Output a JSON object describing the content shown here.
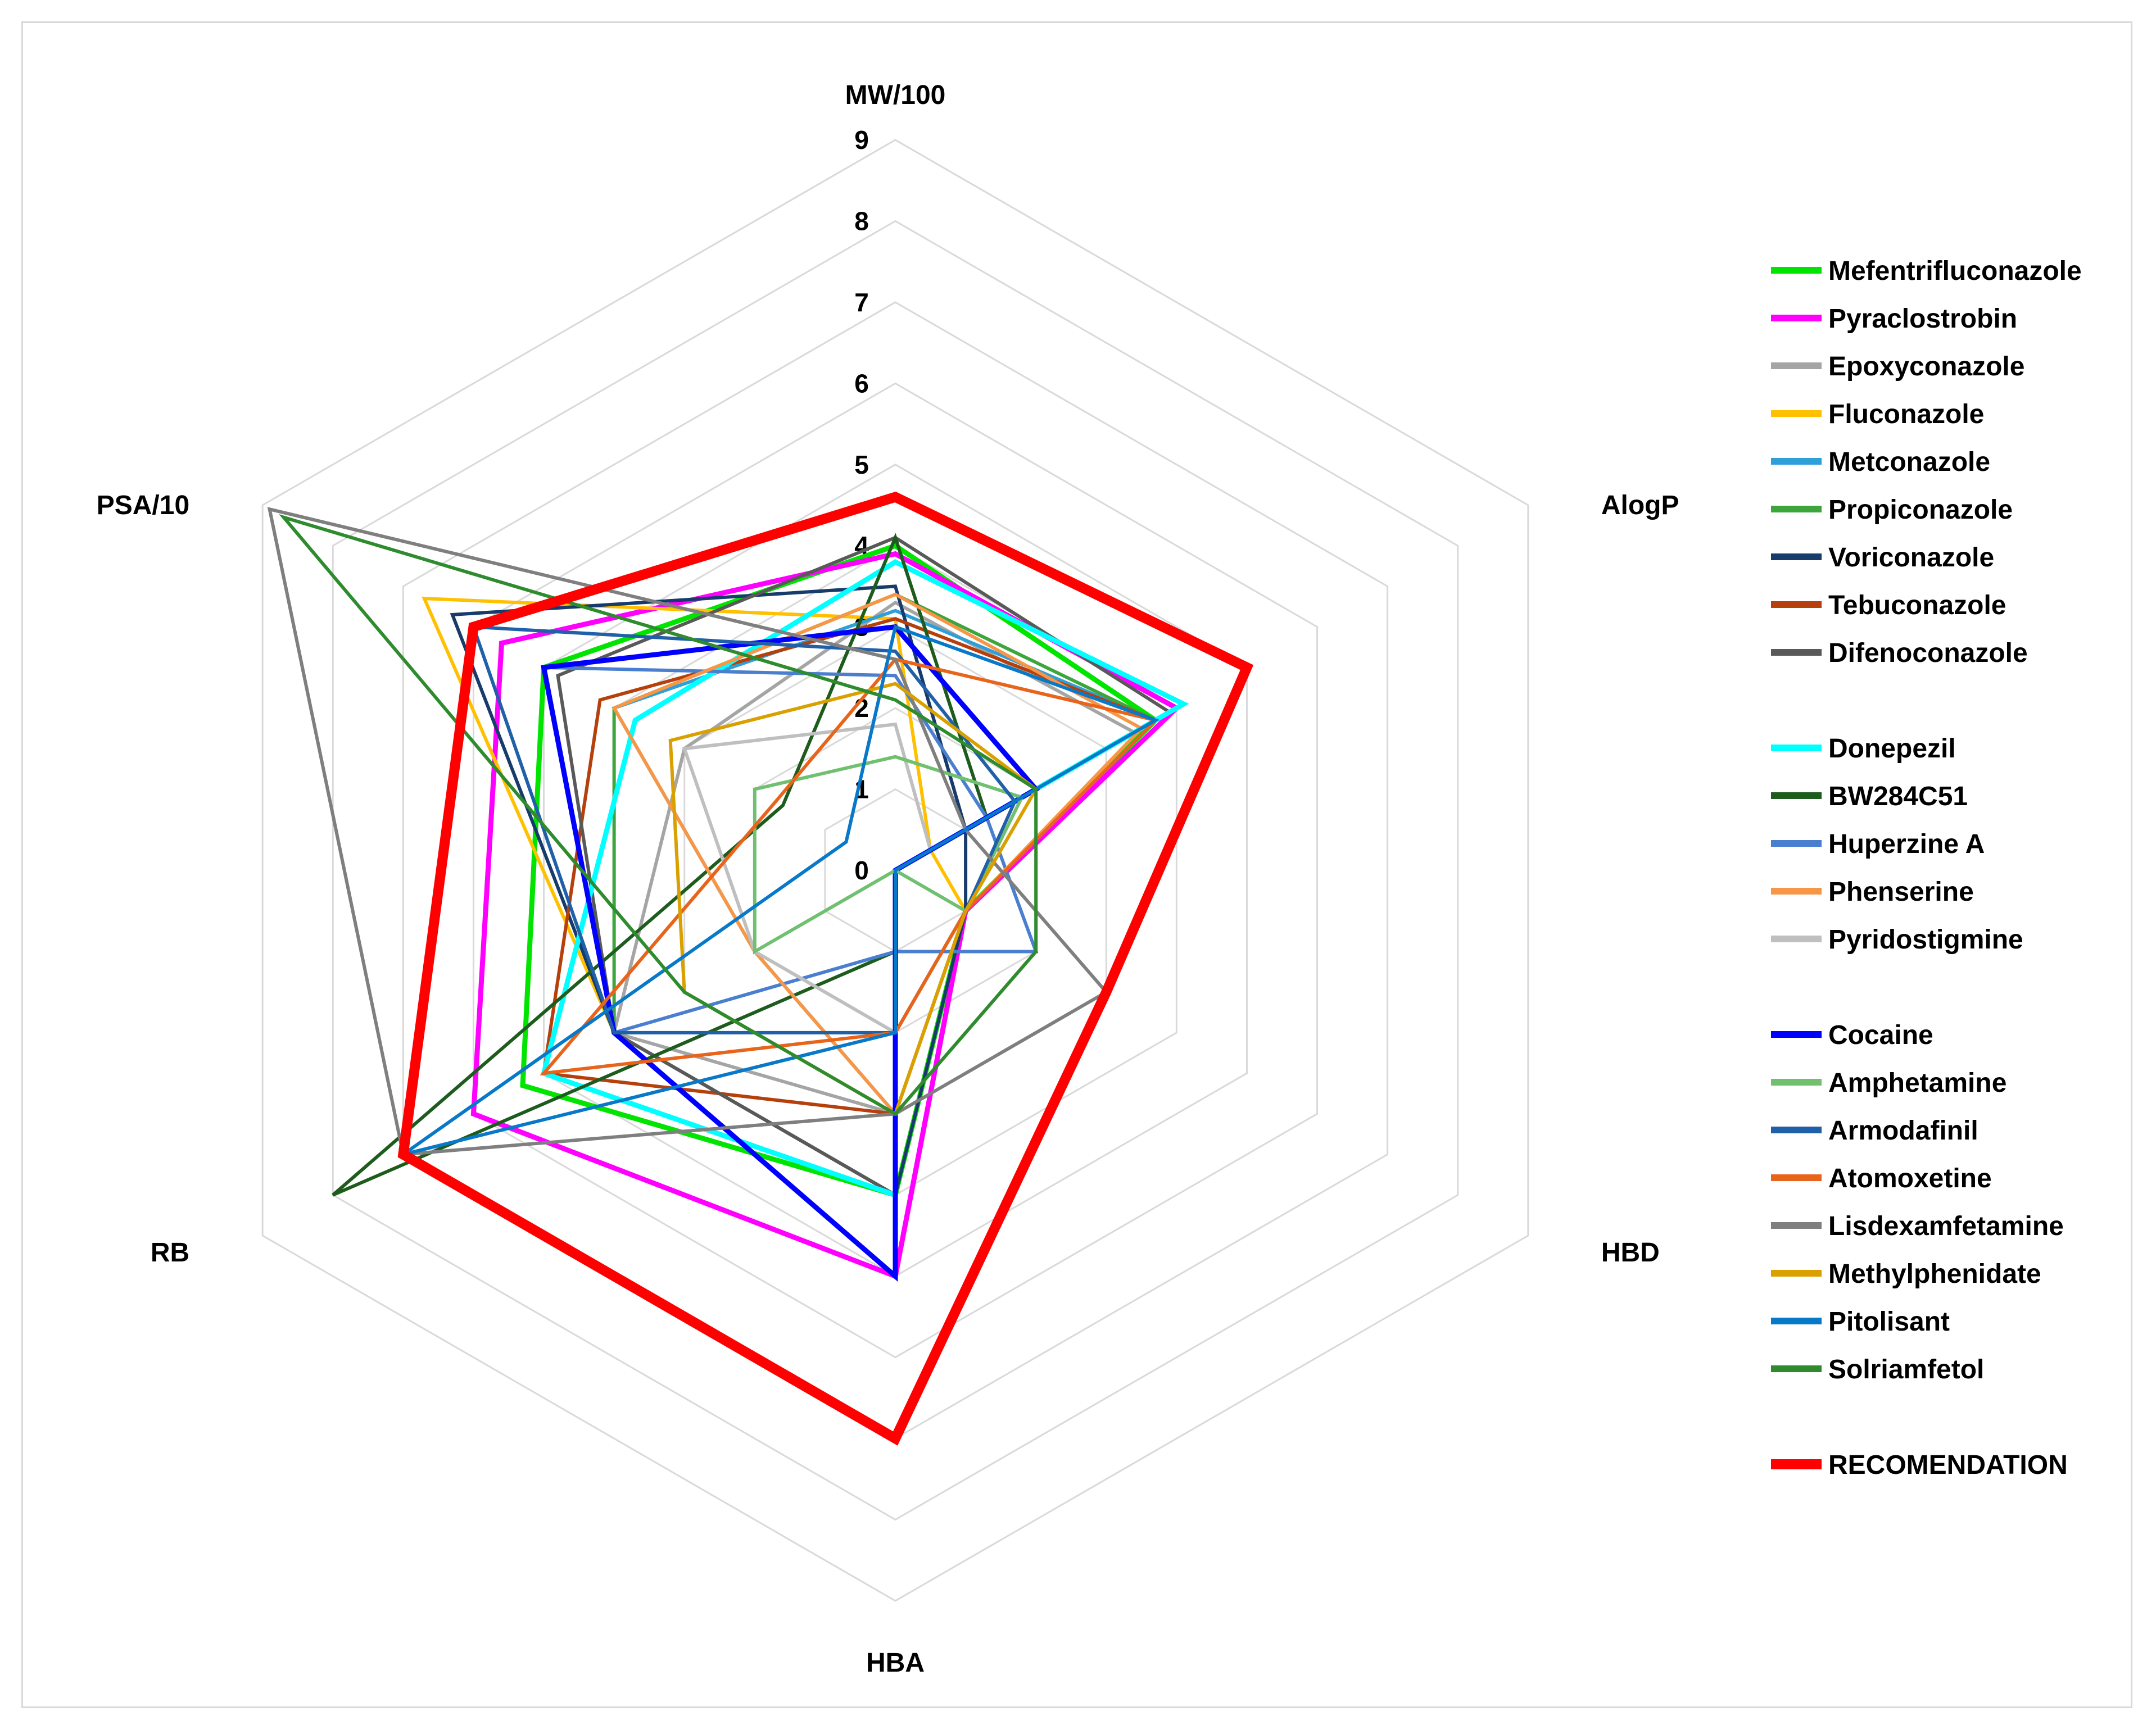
{
  "chart_data": {
    "type": "radar",
    "title": "",
    "axes": [
      "MW/100",
      "AlogP",
      "HBD",
      "HBA",
      "RB",
      "PSA/10"
    ],
    "ticks": [
      0,
      1,
      2,
      3,
      4,
      5,
      6,
      7,
      8,
      9
    ],
    "range": [
      0,
      9
    ],
    "grid": true,
    "legend_position": "right",
    "series": [
      {
        "name": "Mefentrifluconazole",
        "color": "#00e400",
        "width": 9,
        "values": [
          4.0,
          3.7,
          1.0,
          4.0,
          5.3,
          5.0
        ]
      },
      {
        "name": "Pyraclostrobin",
        "color": "#ff00ff",
        "width": 9,
        "values": [
          3.9,
          4.0,
          1.0,
          5.0,
          6.0,
          5.6
        ]
      },
      {
        "name": "Epoxyconazole",
        "color": "#a5a5a5",
        "width": 6,
        "values": [
          3.3,
          3.4,
          0.0,
          3.0,
          4.0,
          3.0
        ]
      },
      {
        "name": "Fluconazole",
        "color": "#ffc000",
        "width": 6,
        "values": [
          3.1,
          0.5,
          1.0,
          4.0,
          4.0,
          6.7
        ]
      },
      {
        "name": "Metconazole",
        "color": "#2e9fd8",
        "width": 6,
        "values": [
          3.2,
          3.7,
          1.0,
          3.0,
          2.0,
          4.0
        ]
      },
      {
        "name": "Propiconazole",
        "color": "#3ca63c",
        "width": 6,
        "values": [
          3.4,
          3.7,
          0.0,
          4.0,
          4.0,
          4.0
        ]
      },
      {
        "name": "Voriconazole",
        "color": "#173b6b",
        "width": 6,
        "values": [
          3.5,
          1.0,
          1.0,
          4.0,
          4.0,
          6.3
        ]
      },
      {
        "name": "Tebuconazole",
        "color": "#b5400c",
        "width": 6,
        "values": [
          3.1,
          3.7,
          1.0,
          3.0,
          5.0,
          4.2
        ]
      },
      {
        "name": "Difenoconazole",
        "color": "#595959",
        "width": 6,
        "values": [
          4.1,
          3.9,
          0.0,
          4.0,
          4.0,
          4.8
        ]
      },
      {
        "name": "Donepezil",
        "color": "#00ffff",
        "width": 9,
        "values": [
          3.8,
          4.1,
          0.0,
          4.0,
          5.0,
          3.7
        ]
      },
      {
        "name": "BW284C51",
        "color": "#1e5c1e",
        "width": 6,
        "values": [
          4.1,
          1.3,
          0.0,
          1.0,
          8.0,
          1.6
        ]
      },
      {
        "name": "Huperzine A",
        "color": "#4a7fd0",
        "width": 6,
        "values": [
          2.4,
          1.3,
          2.0,
          1.0,
          4.0,
          5.0
        ]
      },
      {
        "name": "Phenserine",
        "color": "#f79646",
        "width": 6,
        "values": [
          3.4,
          3.5,
          1.0,
          3.0,
          2.0,
          4.0
        ]
      },
      {
        "name": "Pyridostigmine",
        "color": "#bfbfbf",
        "width": 6,
        "values": [
          1.8,
          0.5,
          0.0,
          2.0,
          2.0,
          3.0
        ]
      },
      {
        "name": "Cocaine",
        "color": "#0000ff",
        "width": 9,
        "values": [
          3.0,
          2.0,
          0.0,
          5.0,
          4.0,
          5.0
        ]
      },
      {
        "name": "Amphetamine",
        "color": "#70c070",
        "width": 6,
        "values": [
          1.4,
          1.8,
          1.0,
          0.0,
          2.0,
          2.0
        ]
      },
      {
        "name": "Armodafinil",
        "color": "#2060a8",
        "width": 6,
        "values": [
          2.7,
          1.7,
          1.0,
          2.0,
          4.0,
          6.0
        ]
      },
      {
        "name": "Atomoxetine",
        "color": "#e8641a",
        "width": 6,
        "values": [
          2.6,
          3.7,
          1.0,
          2.0,
          5.0,
          1.7
        ]
      },
      {
        "name": "Lisdexamfetamine",
        "color": "#7f7f7f",
        "width": 6,
        "values": [
          2.6,
          1.0,
          3.0,
          3.0,
          7.0,
          8.9
        ]
      },
      {
        "name": "Methylphenidate",
        "color": "#d9a000",
        "width": 6,
        "values": [
          2.3,
          2.0,
          1.0,
          3.0,
          3.0,
          3.2
        ]
      },
      {
        "name": "Pitolisant",
        "color": "#0878c8",
        "width": 6,
        "values": [
          3.0,
          3.7,
          0.0,
          2.0,
          7.0,
          0.7
        ]
      },
      {
        "name": "Solriamfetol",
        "color": "#2e8b2e",
        "width": 6,
        "values": [
          2.1,
          2.0,
          2.0,
          3.0,
          3.0,
          8.7
        ]
      },
      {
        "name": "RECOMENDATION",
        "color": "#ff0000",
        "width": 18,
        "values": [
          4.6,
          5.0,
          3.0,
          7.0,
          7.0,
          6.0
        ]
      }
    ]
  }
}
